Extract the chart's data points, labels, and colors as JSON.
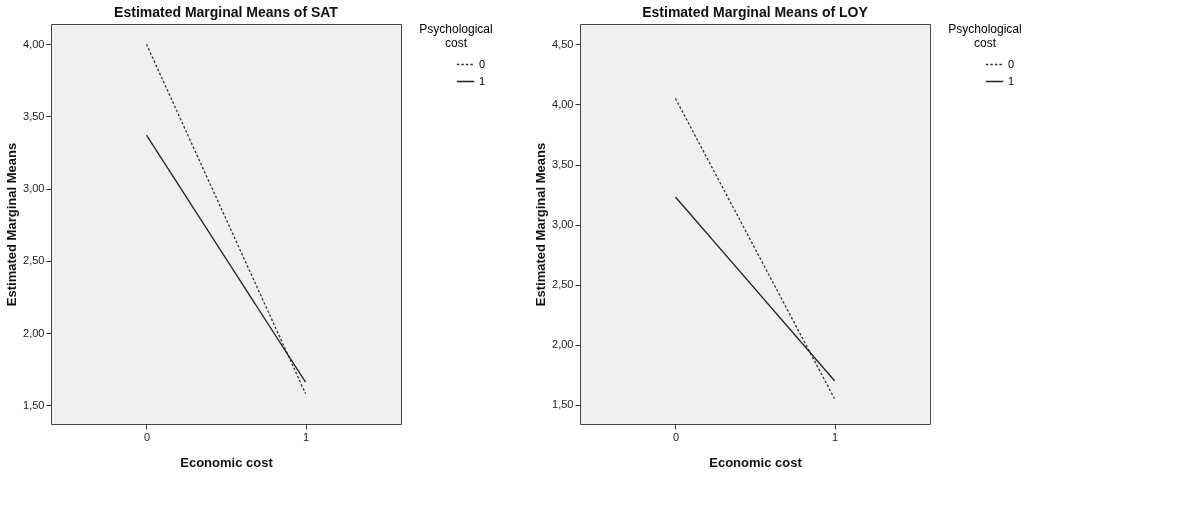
{
  "chart_data": [
    {
      "type": "line",
      "title": "Estimated Marginal Means of SAT",
      "xlabel": "Economic cost",
      "ylabel": "Estimated Marginal Means",
      "legend_title": "Psychological cost",
      "legend": "top right",
      "grid": false,
      "marker": "none",
      "categories": [
        "0",
        "1"
      ],
      "series": [
        {
          "name": "0",
          "color": "#333333",
          "values": [
            4.0,
            1.58
          ],
          "line_style": "dotted"
        },
        {
          "name": "1",
          "color": "#222222",
          "values": [
            3.37,
            1.66
          ],
          "line_style": "solid"
        }
      ],
      "ylim": [
        1.37,
        4.14
      ],
      "yticks": [
        {
          "value": 1.5,
          "label": "1,50"
        },
        {
          "value": 2.0,
          "label": "2,00"
        },
        {
          "value": 2.5,
          "label": "2,50"
        },
        {
          "value": 3.0,
          "label": "3,00"
        },
        {
          "value": 3.5,
          "label": "3,50"
        },
        {
          "value": 4.0,
          "label": "4,00"
        }
      ]
    },
    {
      "type": "line",
      "title": "Estimated Marginal Means of LOY",
      "xlabel": "Economic cost",
      "ylabel": "Estimated Marginal Means",
      "legend_title": "Psychological cost",
      "legend": "top right",
      "grid": false,
      "marker": "none",
      "categories": [
        "0",
        "1"
      ],
      "series": [
        {
          "name": "0",
          "color": "#333333",
          "values": [
            4.05,
            1.55
          ],
          "line_style": "dotted"
        },
        {
          "name": "1",
          "color": "#222222",
          "values": [
            3.23,
            1.7
          ],
          "line_style": "solid"
        }
      ],
      "ylim": [
        1.34,
        4.67
      ],
      "yticks": [
        {
          "value": 1.5,
          "label": "1,50"
        },
        {
          "value": 2.0,
          "label": "2,00"
        },
        {
          "value": 2.5,
          "label": "2,50"
        },
        {
          "value": 3.0,
          "label": "3,00"
        },
        {
          "value": 3.5,
          "label": "3,50"
        },
        {
          "value": 4.0,
          "label": "4,00"
        },
        {
          "value": 4.5,
          "label": "4,50"
        }
      ]
    }
  ]
}
